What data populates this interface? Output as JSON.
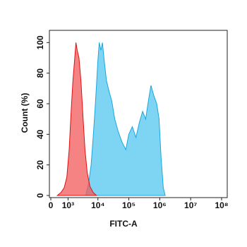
{
  "chart_data": {
    "type": "histogram-overlay",
    "xlabel": "FITC-A",
    "ylabel": "Count (%)",
    "xscale": "biexponential",
    "xlim": [
      0,
      100000000
    ],
    "ylim": [
      0,
      108
    ],
    "xticks": [
      0,
      {
        "value": 1000,
        "label": "10³"
      },
      {
        "value": 10000,
        "label": "10⁴"
      },
      {
        "value": 100000,
        "label": "10⁵"
      },
      {
        "value": 1000000,
        "label": "10⁶"
      },
      {
        "value": 10000000,
        "label": "10⁷"
      },
      {
        "value": 100000000,
        "label": "10⁸"
      }
    ],
    "yticks": [
      0,
      20,
      40,
      60,
      80,
      100
    ],
    "series": [
      {
        "color": "#1ca6dc",
        "fill": "#6fd0f2",
        "x": [
          4000,
          5000,
          6000,
          7000,
          8000,
          9000,
          10000,
          11000,
          12500,
          14000,
          16000,
          19000,
          23000,
          28000,
          35000,
          45000,
          60000,
          80000,
          100000,
          130000,
          170000,
          220000,
          280000,
          350000,
          430000,
          520000,
          650000,
          800000,
          950000,
          1100000,
          1300000,
          1500000
        ],
        "values": [
          0,
          8,
          20,
          38,
          55,
          72,
          88,
          100,
          95,
          100,
          88,
          75,
          68,
          62,
          50,
          42,
          35,
          30,
          40,
          45,
          38,
          48,
          55,
          50,
          62,
          72,
          65,
          60,
          50,
          25,
          5,
          0
        ]
      },
      {
        "color": "#e01010",
        "fill": "#f25a5a",
        "x": [
          300,
          500,
          700,
          900,
          1100,
          1300,
          1500,
          1700,
          1900,
          2100,
          2400,
          2800,
          3300,
          3800,
          4500,
          5500,
          7000,
          9000
        ],
        "values": [
          0,
          2,
          5,
          12,
          30,
          55,
          75,
          88,
          100,
          95,
          90,
          75,
          50,
          30,
          15,
          6,
          2,
          0
        ]
      }
    ]
  }
}
